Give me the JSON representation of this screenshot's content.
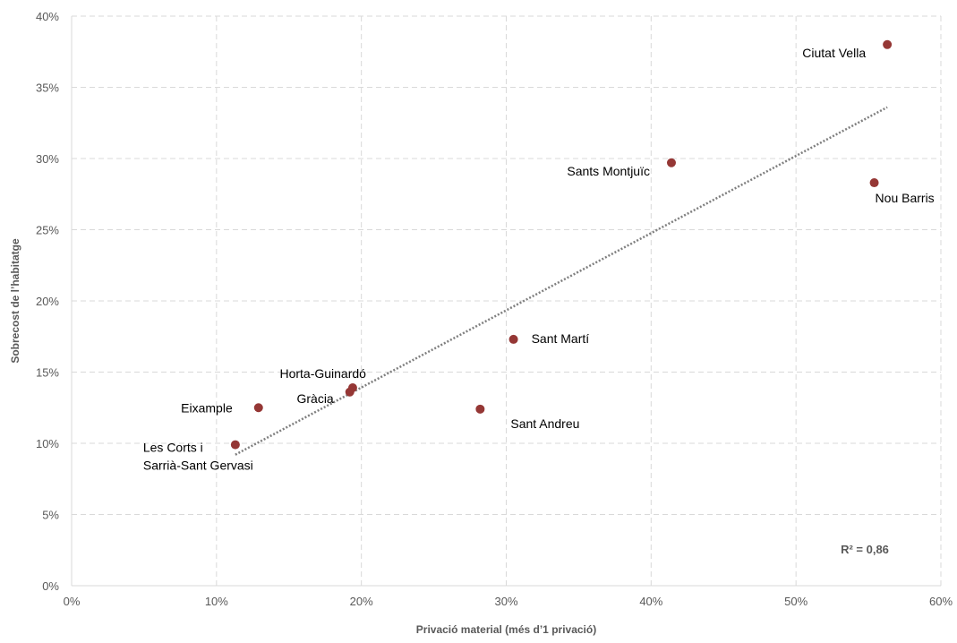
{
  "chart_data": {
    "type": "scatter",
    "title": "",
    "xlabel": "Privació material (més d’1 privació)",
    "ylabel": "Sobrecost de l’habitatge",
    "xlim": [
      0,
      60
    ],
    "ylim": [
      0,
      40
    ],
    "x_ticks": [
      0,
      10,
      20,
      30,
      40,
      50,
      60
    ],
    "y_ticks": [
      0,
      5,
      10,
      15,
      20,
      25,
      30,
      35,
      40
    ],
    "x_tick_labels": [
      "0%",
      "10%",
      "20%",
      "30%",
      "40%",
      "50%",
      "60%"
    ],
    "y_tick_labels": [
      "0%",
      "5%",
      "10%",
      "15%",
      "20%",
      "25%",
      "30%",
      "35%",
      "40%"
    ],
    "grid": true,
    "grid_style": "dashed",
    "point_color": "#953735",
    "trendline_color": "#7f7f7f",
    "points": [
      {
        "label": "Ciutat Vella",
        "x": 56.3,
        "y": 38.0,
        "label_position": "left-below"
      },
      {
        "label": "Sants Montjuïc",
        "x": 41.4,
        "y": 29.7,
        "label_position": "left-below"
      },
      {
        "label": "Nou Barris",
        "x": 55.4,
        "y": 28.3,
        "label_position": "right-below"
      },
      {
        "label": "Sant Martí",
        "x": 30.5,
        "y": 17.3,
        "label_position": "right"
      },
      {
        "label": "Sant Andreu",
        "x": 28.2,
        "y": 12.4,
        "label_position": "right-below"
      },
      {
        "label": "Horta-Guinardó",
        "x": 19.4,
        "y": 13.9,
        "label_position": "left-above"
      },
      {
        "label": "Gràcia",
        "x": 19.2,
        "y": 13.6,
        "label_position": "left-below"
      },
      {
        "label": "Eixample",
        "x": 12.9,
        "y": 12.5,
        "label_position": "left"
      },
      {
        "label": "Les Corts i\nSarrià-Sant Gervasi",
        "x": 11.3,
        "y": 9.9,
        "label_position": "below"
      }
    ],
    "trendline": {
      "x": [
        11.3,
        56.3
      ],
      "y": [
        9.2,
        33.6
      ],
      "style": "dotted"
    },
    "annotation": "R² = 0,86"
  }
}
